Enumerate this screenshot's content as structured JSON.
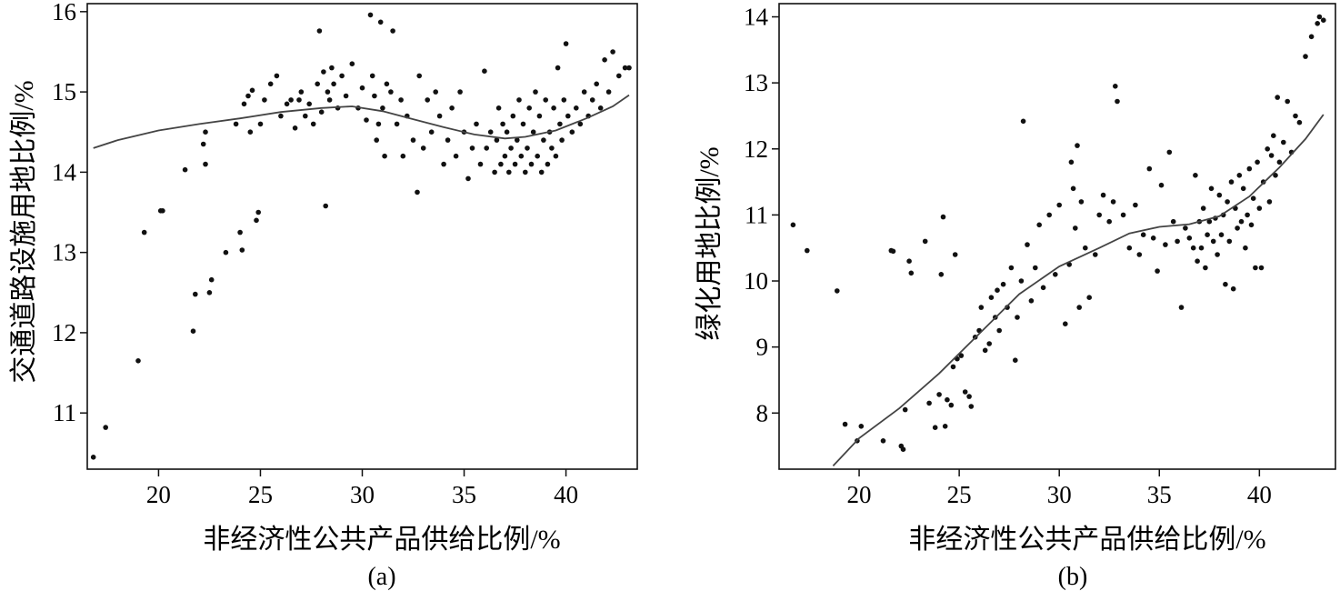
{
  "chart_data": [
    {
      "type": "scatter",
      "panel_label": "(a)",
      "xlabel": "非经济性公共产品供给比例/%",
      "ylabel": "交通道路设施用地比例/%",
      "xlim": [
        16.5,
        43.5
      ],
      "ylim": [
        10.3,
        16.1
      ],
      "x_ticks": [
        20,
        25,
        30,
        35,
        40
      ],
      "y_ticks": [
        11,
        12,
        13,
        14,
        15,
        16
      ],
      "grid": false,
      "legend": "none",
      "points": [
        [
          16.8,
          10.45
        ],
        [
          17.4,
          10.82
        ],
        [
          19.0,
          11.65
        ],
        [
          19.3,
          13.25
        ],
        [
          20.1,
          13.52
        ],
        [
          20.2,
          13.52
        ],
        [
          21.3,
          14.03
        ],
        [
          21.7,
          12.02
        ],
        [
          21.8,
          12.48
        ],
        [
          22.2,
          14.35
        ],
        [
          22.3,
          14.1
        ],
        [
          22.3,
          14.5
        ],
        [
          22.5,
          12.5
        ],
        [
          22.6,
          12.66
        ],
        [
          23.3,
          13.0
        ],
        [
          23.8,
          14.6
        ],
        [
          24.0,
          13.25
        ],
        [
          24.1,
          13.03
        ],
        [
          24.2,
          14.85
        ],
        [
          24.4,
          14.95
        ],
        [
          24.5,
          14.5
        ],
        [
          24.6,
          15.02
        ],
        [
          24.8,
          13.4
        ],
        [
          24.9,
          13.5
        ],
        [
          25.0,
          14.6
        ],
        [
          25.2,
          14.9
        ],
        [
          25.5,
          15.1
        ],
        [
          25.8,
          15.2
        ],
        [
          26.0,
          14.7
        ],
        [
          26.3,
          14.85
        ],
        [
          26.5,
          14.9
        ],
        [
          26.7,
          14.55
        ],
        [
          26.9,
          14.9
        ],
        [
          27.0,
          15.0
        ],
        [
          27.2,
          14.7
        ],
        [
          27.4,
          14.85
        ],
        [
          27.6,
          14.6
        ],
        [
          27.8,
          15.1
        ],
        [
          27.9,
          15.76
        ],
        [
          28.0,
          14.75
        ],
        [
          28.1,
          15.25
        ],
        [
          28.2,
          13.58
        ],
        [
          28.3,
          15.0
        ],
        [
          28.4,
          14.9
        ],
        [
          28.5,
          15.3
        ],
        [
          28.6,
          15.1
        ],
        [
          28.8,
          14.8
        ],
        [
          29.0,
          15.2
        ],
        [
          29.2,
          14.95
        ],
        [
          29.5,
          15.35
        ],
        [
          29.8,
          14.8
        ],
        [
          30.0,
          15.05
        ],
        [
          30.2,
          14.65
        ],
        [
          30.4,
          15.96
        ],
        [
          30.5,
          15.2
        ],
        [
          30.6,
          14.95
        ],
        [
          30.7,
          14.4
        ],
        [
          30.8,
          14.6
        ],
        [
          30.9,
          15.87
        ],
        [
          31.0,
          14.8
        ],
        [
          31.1,
          14.2
        ],
        [
          31.2,
          15.1
        ],
        [
          31.4,
          15.0
        ],
        [
          31.5,
          15.76
        ],
        [
          31.7,
          14.6
        ],
        [
          31.9,
          14.9
        ],
        [
          32.0,
          14.2
        ],
        [
          32.2,
          14.7
        ],
        [
          32.5,
          14.4
        ],
        [
          32.7,
          13.75
        ],
        [
          32.8,
          15.2
        ],
        [
          33.0,
          14.3
        ],
        [
          33.2,
          14.9
        ],
        [
          33.4,
          14.5
        ],
        [
          33.6,
          15.0
        ],
        [
          33.8,
          14.7
        ],
        [
          34.0,
          14.1
        ],
        [
          34.2,
          14.4
        ],
        [
          34.4,
          14.8
        ],
        [
          34.6,
          14.2
        ],
        [
          34.8,
          15.0
        ],
        [
          35.0,
          14.5
        ],
        [
          35.2,
          13.92
        ],
        [
          35.4,
          14.3
        ],
        [
          35.6,
          14.6
        ],
        [
          35.8,
          14.1
        ],
        [
          36.0,
          15.26
        ],
        [
          36.1,
          14.3
        ],
        [
          36.3,
          14.5
        ],
        [
          36.5,
          14.0
        ],
        [
          36.6,
          14.4
        ],
        [
          36.7,
          14.8
        ],
        [
          36.8,
          14.1
        ],
        [
          36.9,
          14.6
        ],
        [
          37.0,
          14.2
        ],
        [
          37.1,
          14.5
        ],
        [
          37.2,
          14.0
        ],
        [
          37.3,
          14.3
        ],
        [
          37.4,
          14.7
        ],
        [
          37.5,
          14.1
        ],
        [
          37.6,
          14.4
        ],
        [
          37.7,
          14.9
        ],
        [
          37.8,
          14.2
        ],
        [
          37.9,
          14.6
        ],
        [
          38.0,
          14.0
        ],
        [
          38.1,
          14.3
        ],
        [
          38.2,
          14.8
        ],
        [
          38.3,
          14.1
        ],
        [
          38.4,
          14.5
        ],
        [
          38.5,
          15.0
        ],
        [
          38.6,
          14.2
        ],
        [
          38.7,
          14.7
        ],
        [
          38.8,
          14.0
        ],
        [
          38.9,
          14.4
        ],
        [
          39.0,
          14.9
        ],
        [
          39.1,
          14.1
        ],
        [
          39.2,
          14.5
        ],
        [
          39.3,
          14.3
        ],
        [
          39.4,
          14.8
        ],
        [
          39.5,
          14.2
        ],
        [
          39.6,
          15.3
        ],
        [
          39.7,
          14.6
        ],
        [
          39.8,
          14.4
        ],
        [
          39.9,
          14.9
        ],
        [
          40.0,
          15.6
        ],
        [
          40.1,
          14.7
        ],
        [
          40.3,
          14.5
        ],
        [
          40.5,
          14.8
        ],
        [
          40.7,
          14.6
        ],
        [
          40.9,
          15.0
        ],
        [
          41.1,
          14.7
        ],
        [
          41.3,
          14.9
        ],
        [
          41.5,
          15.1
        ],
        [
          41.7,
          14.8
        ],
        [
          41.9,
          15.4
        ],
        [
          42.1,
          15.0
        ],
        [
          42.3,
          15.5
        ],
        [
          42.6,
          15.2
        ],
        [
          42.9,
          15.3
        ],
        [
          43.1,
          15.3
        ]
      ],
      "fit_line": [
        [
          16.8,
          14.3
        ],
        [
          18,
          14.4
        ],
        [
          20,
          14.52
        ],
        [
          22,
          14.6
        ],
        [
          24,
          14.67
        ],
        [
          26,
          14.75
        ],
        [
          28,
          14.8
        ],
        [
          29.5,
          14.82
        ],
        [
          31,
          14.76
        ],
        [
          32.5,
          14.66
        ],
        [
          34,
          14.56
        ],
        [
          35.5,
          14.47
        ],
        [
          37,
          14.42
        ],
        [
          38,
          14.44
        ],
        [
          39.5,
          14.52
        ],
        [
          41,
          14.67
        ],
        [
          42.3,
          14.82
        ],
        [
          43.1,
          14.96
        ]
      ]
    },
    {
      "type": "scatter",
      "panel_label": "(b)",
      "xlabel": "非经济性公共产品供给比例/%",
      "ylabel": "绿化用地比例/%",
      "xlim": [
        16.0,
        43.8
      ],
      "ylim": [
        7.15,
        14.2
      ],
      "x_ticks": [
        20,
        25,
        30,
        35,
        40
      ],
      "y_ticks": [
        8,
        9,
        10,
        11,
        12,
        13,
        14
      ],
      "grid": false,
      "legend": "none",
      "points": [
        [
          16.7,
          10.85
        ],
        [
          17.4,
          10.46
        ],
        [
          18.9,
          9.85
        ],
        [
          19.3,
          7.83
        ],
        [
          19.9,
          7.58
        ],
        [
          20.1,
          7.8
        ],
        [
          21.2,
          7.58
        ],
        [
          21.6,
          10.46
        ],
        [
          21.7,
          10.45
        ],
        [
          22.1,
          7.5
        ],
        [
          22.2,
          7.45
        ],
        [
          22.3,
          8.05
        ],
        [
          22.5,
          10.3
        ],
        [
          22.6,
          10.12
        ],
        [
          23.3,
          10.6
        ],
        [
          23.5,
          8.15
        ],
        [
          23.8,
          7.78
        ],
        [
          24.0,
          8.28
        ],
        [
          24.1,
          10.1
        ],
        [
          24.2,
          10.97
        ],
        [
          24.3,
          7.8
        ],
        [
          24.4,
          8.2
        ],
        [
          24.6,
          8.12
        ],
        [
          24.7,
          8.7
        ],
        [
          24.8,
          10.4
        ],
        [
          24.9,
          8.82
        ],
        [
          25.1,
          8.87
        ],
        [
          25.3,
          8.32
        ],
        [
          25.5,
          8.25
        ],
        [
          25.6,
          8.1
        ],
        [
          25.8,
          9.15
        ],
        [
          26.0,
          9.25
        ],
        [
          26.1,
          9.6
        ],
        [
          26.3,
          8.95
        ],
        [
          26.5,
          9.05
        ],
        [
          26.6,
          9.75
        ],
        [
          26.8,
          9.45
        ],
        [
          26.9,
          9.86
        ],
        [
          27.0,
          9.25
        ],
        [
          27.2,
          9.95
        ],
        [
          27.4,
          9.6
        ],
        [
          27.6,
          10.2
        ],
        [
          27.8,
          8.8
        ],
        [
          27.9,
          9.45
        ],
        [
          28.1,
          10.0
        ],
        [
          28.2,
          12.42
        ],
        [
          28.4,
          10.55
        ],
        [
          28.6,
          9.7
        ],
        [
          28.8,
          10.2
        ],
        [
          29.0,
          10.85
        ],
        [
          29.2,
          9.9
        ],
        [
          29.5,
          11.0
        ],
        [
          29.8,
          10.1
        ],
        [
          30.0,
          11.15
        ],
        [
          30.3,
          9.35
        ],
        [
          30.5,
          10.25
        ],
        [
          30.6,
          11.8
        ],
        [
          30.7,
          11.4
        ],
        [
          30.8,
          10.8
        ],
        [
          30.9,
          12.05
        ],
        [
          31.0,
          9.6
        ],
        [
          31.1,
          11.2
        ],
        [
          31.3,
          10.5
        ],
        [
          31.5,
          9.75
        ],
        [
          31.8,
          10.4
        ],
        [
          32.0,
          11.0
        ],
        [
          32.2,
          11.3
        ],
        [
          32.5,
          10.9
        ],
        [
          32.7,
          11.2
        ],
        [
          32.8,
          12.95
        ],
        [
          32.9,
          12.72
        ],
        [
          33.2,
          11.0
        ],
        [
          33.5,
          10.5
        ],
        [
          33.8,
          11.15
        ],
        [
          34.0,
          10.4
        ],
        [
          34.2,
          10.7
        ],
        [
          34.5,
          11.7
        ],
        [
          34.7,
          10.65
        ],
        [
          34.9,
          10.15
        ],
        [
          35.1,
          11.45
        ],
        [
          35.3,
          10.55
        ],
        [
          35.5,
          11.95
        ],
        [
          35.7,
          10.9
        ],
        [
          35.9,
          10.6
        ],
        [
          36.1,
          9.6
        ],
        [
          36.3,
          10.8
        ],
        [
          36.5,
          10.65
        ],
        [
          36.7,
          10.5
        ],
        [
          36.8,
          11.6
        ],
        [
          36.9,
          10.3
        ],
        [
          37.0,
          10.9
        ],
        [
          37.1,
          10.5
        ],
        [
          37.2,
          11.1
        ],
        [
          37.3,
          10.2
        ],
        [
          37.4,
          10.7
        ],
        [
          37.5,
          10.9
        ],
        [
          37.6,
          11.4
        ],
        [
          37.7,
          10.6
        ],
        [
          37.8,
          10.95
        ],
        [
          37.9,
          10.4
        ],
        [
          38.0,
          11.3
        ],
        [
          38.1,
          10.7
        ],
        [
          38.2,
          11.0
        ],
        [
          38.3,
          9.95
        ],
        [
          38.4,
          11.2
        ],
        [
          38.5,
          10.6
        ],
        [
          38.6,
          11.5
        ],
        [
          38.7,
          9.88
        ],
        [
          38.8,
          11.1
        ],
        [
          38.9,
          10.8
        ],
        [
          39.0,
          11.6
        ],
        [
          39.1,
          10.9
        ],
        [
          39.2,
          11.4
        ],
        [
          39.3,
          10.5
        ],
        [
          39.4,
          11.0
        ],
        [
          39.5,
          11.7
        ],
        [
          39.6,
          10.85
        ],
        [
          39.7,
          11.25
        ],
        [
          39.8,
          10.2
        ],
        [
          39.9,
          11.8
        ],
        [
          40.0,
          11.1
        ],
        [
          40.1,
          10.2
        ],
        [
          40.2,
          11.5
        ],
        [
          40.4,
          12.0
        ],
        [
          40.5,
          11.2
        ],
        [
          40.6,
          11.9
        ],
        [
          40.7,
          12.2
        ],
        [
          40.8,
          11.6
        ],
        [
          40.9,
          12.78
        ],
        [
          41.0,
          11.8
        ],
        [
          41.2,
          12.1
        ],
        [
          41.4,
          12.72
        ],
        [
          41.6,
          11.95
        ],
        [
          41.8,
          12.5
        ],
        [
          42.0,
          12.4
        ],
        [
          42.3,
          13.4
        ],
        [
          42.6,
          13.7
        ],
        [
          42.9,
          13.9
        ],
        [
          43.0,
          14.0
        ],
        [
          43.2,
          13.95
        ]
      ],
      "fit_line": [
        [
          18.7,
          7.2
        ],
        [
          20,
          7.62
        ],
        [
          22,
          8.07
        ],
        [
          24,
          8.6
        ],
        [
          26,
          9.2
        ],
        [
          28,
          9.8
        ],
        [
          30,
          10.22
        ],
        [
          32,
          10.5
        ],
        [
          33.5,
          10.72
        ],
        [
          35,
          10.82
        ],
        [
          36.5,
          10.86
        ],
        [
          38,
          10.98
        ],
        [
          39.5,
          11.28
        ],
        [
          41,
          11.72
        ],
        [
          42.3,
          12.15
        ],
        [
          43.2,
          12.52
        ]
      ]
    }
  ]
}
